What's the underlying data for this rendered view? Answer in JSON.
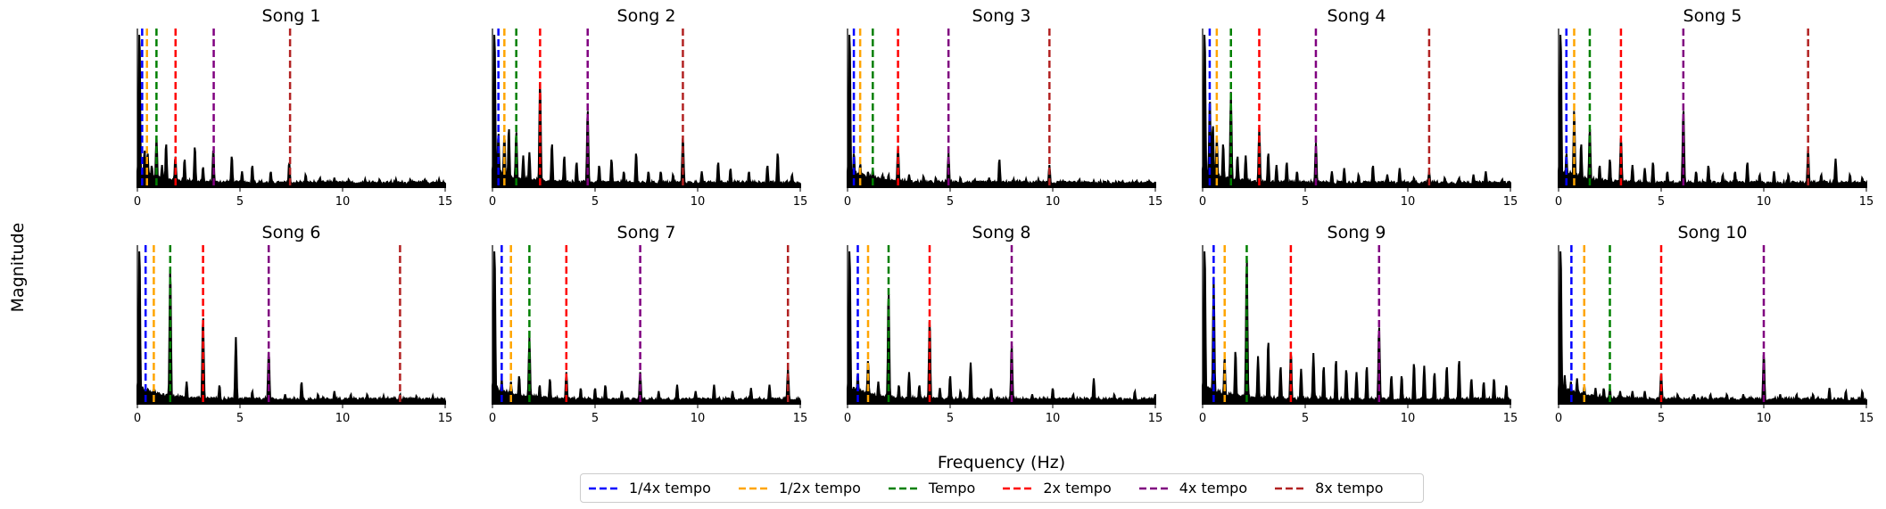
{
  "figure": {
    "ylabel": "Magnitude",
    "xlabel": "Frequency (Hz)"
  },
  "legend": {
    "items": [
      {
        "label": "1/4x tempo",
        "color": "#0000ff",
        "multiplier": 0.25
      },
      {
        "label": "1/2x tempo",
        "color": "#ffa500",
        "multiplier": 0.5
      },
      {
        "label": "Tempo",
        "color": "#008000",
        "multiplier": 1
      },
      {
        "label": "2x tempo",
        "color": "#ff0000",
        "multiplier": 2
      },
      {
        "label": "4x tempo",
        "color": "#800080",
        "multiplier": 4
      },
      {
        "label": "8x tempo",
        "color": "#b22222",
        "multiplier": 8
      }
    ]
  },
  "chart_data": [
    {
      "type": "line",
      "title": "Song 1",
      "tempo_hz": 0.93,
      "xlim": [
        0,
        15
      ],
      "xticks": [
        0,
        5,
        10,
        15
      ],
      "grid": false,
      "peaks": [
        [
          0.1,
          1.0
        ],
        [
          0.35,
          0.24
        ],
        [
          0.5,
          0.22
        ],
        [
          0.7,
          0.14
        ],
        [
          0.93,
          0.32
        ],
        [
          1.2,
          0.14
        ],
        [
          1.4,
          0.28
        ],
        [
          1.85,
          0.2
        ],
        [
          2.3,
          0.18
        ],
        [
          2.8,
          0.26
        ],
        [
          3.2,
          0.13
        ],
        [
          3.7,
          0.24
        ],
        [
          4.6,
          0.2
        ],
        [
          5.1,
          0.1
        ],
        [
          5.6,
          0.14
        ],
        [
          6.5,
          0.1
        ],
        [
          7.4,
          0.16
        ],
        [
          8.2,
          0.08
        ],
        [
          8.9,
          0.06
        ],
        [
          9.6,
          0.06
        ],
        [
          10.3,
          0.05
        ],
        [
          11.1,
          0.05
        ],
        [
          11.8,
          0.05
        ],
        [
          12.6,
          0.05
        ],
        [
          13.3,
          0.05
        ],
        [
          14.0,
          0.05
        ],
        [
          14.7,
          0.05
        ]
      ]
    },
    {
      "type": "line",
      "title": "Song 2",
      "tempo_hz": 1.16,
      "xlim": [
        0,
        15
      ],
      "xticks": [
        0,
        5,
        10,
        15
      ],
      "grid": false,
      "peaks": [
        [
          0.1,
          1.0
        ],
        [
          0.29,
          0.35
        ],
        [
          0.58,
          0.34
        ],
        [
          0.8,
          0.38
        ],
        [
          1.16,
          0.36
        ],
        [
          1.5,
          0.2
        ],
        [
          1.8,
          0.22
        ],
        [
          2.32,
          0.68
        ],
        [
          2.9,
          0.28
        ],
        [
          3.5,
          0.2
        ],
        [
          4.1,
          0.16
        ],
        [
          4.64,
          0.5
        ],
        [
          5.2,
          0.14
        ],
        [
          5.8,
          0.18
        ],
        [
          6.4,
          0.1
        ],
        [
          7.0,
          0.22
        ],
        [
          7.6,
          0.1
        ],
        [
          8.2,
          0.1
        ],
        [
          8.8,
          0.08
        ],
        [
          9.28,
          0.32
        ],
        [
          10.2,
          0.1
        ],
        [
          11.0,
          0.16
        ],
        [
          11.6,
          0.12
        ],
        [
          12.5,
          0.1
        ],
        [
          13.4,
          0.14
        ],
        [
          13.9,
          0.22
        ],
        [
          14.6,
          0.08
        ]
      ]
    },
    {
      "type": "line",
      "title": "Song 3",
      "tempo_hz": 1.23,
      "xlim": [
        0,
        15
      ],
      "xticks": [
        0,
        5,
        10,
        15
      ],
      "grid": false,
      "peaks": [
        [
          0.1,
          1.0
        ],
        [
          0.31,
          0.22
        ],
        [
          0.62,
          0.15
        ],
        [
          1.0,
          0.1
        ],
        [
          1.23,
          0.12
        ],
        [
          1.7,
          0.08
        ],
        [
          2.0,
          0.08
        ],
        [
          2.46,
          0.26
        ],
        [
          3.0,
          0.08
        ],
        [
          3.7,
          0.07
        ],
        [
          4.3,
          0.06
        ],
        [
          4.92,
          0.22
        ],
        [
          5.5,
          0.06
        ],
        [
          6.2,
          0.05
        ],
        [
          6.9,
          0.06
        ],
        [
          7.4,
          0.18
        ],
        [
          8.1,
          0.05
        ],
        [
          8.7,
          0.05
        ],
        [
          9.3,
          0.05
        ],
        [
          9.84,
          0.14
        ],
        [
          10.5,
          0.04
        ],
        [
          11.3,
          0.05
        ],
        [
          12.0,
          0.04
        ],
        [
          12.7,
          0.04
        ],
        [
          13.4,
          0.04
        ],
        [
          14.1,
          0.04
        ],
        [
          14.7,
          0.04
        ]
      ]
    },
    {
      "type": "line",
      "title": "Song 4",
      "tempo_hz": 1.38,
      "xlim": [
        0,
        15
      ],
      "xticks": [
        0,
        5,
        10,
        15
      ],
      "grid": false,
      "peaks": [
        [
          0.1,
          1.0
        ],
        [
          0.35,
          0.56
        ],
        [
          0.5,
          0.4
        ],
        [
          0.69,
          0.32
        ],
        [
          1.0,
          0.28
        ],
        [
          1.38,
          0.6
        ],
        [
          1.7,
          0.2
        ],
        [
          2.1,
          0.2
        ],
        [
          2.76,
          0.38
        ],
        [
          3.2,
          0.22
        ],
        [
          3.6,
          0.14
        ],
        [
          4.1,
          0.16
        ],
        [
          4.6,
          0.1
        ],
        [
          5.52,
          0.28
        ],
        [
          6.3,
          0.1
        ],
        [
          6.9,
          0.12
        ],
        [
          7.6,
          0.08
        ],
        [
          8.3,
          0.14
        ],
        [
          9.0,
          0.08
        ],
        [
          9.6,
          0.12
        ],
        [
          10.3,
          0.06
        ],
        [
          11.04,
          0.1
        ],
        [
          11.8,
          0.06
        ],
        [
          12.5,
          0.06
        ],
        [
          13.2,
          0.08
        ],
        [
          13.8,
          0.1
        ],
        [
          14.6,
          0.05
        ]
      ]
    },
    {
      "type": "line",
      "title": "Song 5",
      "tempo_hz": 1.52,
      "xlim": [
        0,
        15
      ],
      "xticks": [
        0,
        5,
        10,
        15
      ],
      "grid": false,
      "peaks": [
        [
          0.1,
          1.0
        ],
        [
          0.38,
          0.22
        ],
        [
          0.76,
          0.5
        ],
        [
          1.1,
          0.28
        ],
        [
          1.52,
          0.38
        ],
        [
          2.0,
          0.14
        ],
        [
          2.5,
          0.18
        ],
        [
          3.04,
          0.32
        ],
        [
          3.6,
          0.14
        ],
        [
          4.2,
          0.12
        ],
        [
          4.6,
          0.16
        ],
        [
          5.3,
          0.1
        ],
        [
          6.08,
          0.5
        ],
        [
          6.7,
          0.1
        ],
        [
          7.3,
          0.14
        ],
        [
          8.0,
          0.08
        ],
        [
          8.6,
          0.1
        ],
        [
          9.2,
          0.16
        ],
        [
          9.8,
          0.08
        ],
        [
          10.5,
          0.1
        ],
        [
          11.2,
          0.08
        ],
        [
          12.16,
          0.24
        ],
        [
          12.8,
          0.08
        ],
        [
          13.5,
          0.18
        ],
        [
          14.2,
          0.08
        ],
        [
          14.8,
          0.06
        ]
      ]
    },
    {
      "type": "line",
      "title": "Song 6",
      "tempo_hz": 1.6,
      "xlim": [
        0,
        15
      ],
      "xticks": [
        0,
        5,
        10,
        15
      ],
      "grid": false,
      "peaks": [
        [
          0.1,
          1.0
        ],
        [
          0.4,
          0.08
        ],
        [
          0.8,
          0.1
        ],
        [
          1.6,
          0.88
        ],
        [
          2.4,
          0.14
        ],
        [
          3.2,
          0.56
        ],
        [
          4.0,
          0.12
        ],
        [
          4.8,
          0.42
        ],
        [
          5.6,
          0.08
        ],
        [
          6.4,
          0.34
        ],
        [
          7.2,
          0.06
        ],
        [
          8.0,
          0.14
        ],
        [
          8.8,
          0.06
        ],
        [
          9.6,
          0.08
        ],
        [
          10.4,
          0.06
        ],
        [
          11.2,
          0.06
        ],
        [
          12.0,
          0.05
        ],
        [
          12.8,
          0.06
        ],
        [
          13.6,
          0.05
        ],
        [
          14.4,
          0.05
        ]
      ]
    },
    {
      "type": "line",
      "title": "Song 7",
      "tempo_hz": 1.8,
      "xlim": [
        0,
        15
      ],
      "xticks": [
        0,
        5,
        10,
        15
      ],
      "grid": false,
      "peaks": [
        [
          0.1,
          1.0
        ],
        [
          0.45,
          0.16
        ],
        [
          0.9,
          0.14
        ],
        [
          1.3,
          0.18
        ],
        [
          1.8,
          0.42
        ],
        [
          2.3,
          0.12
        ],
        [
          2.8,
          0.16
        ],
        [
          3.6,
          0.2
        ],
        [
          4.3,
          0.1
        ],
        [
          5.0,
          0.1
        ],
        [
          5.5,
          0.12
        ],
        [
          6.3,
          0.08
        ],
        [
          7.2,
          0.2
        ],
        [
          8.1,
          0.08
        ],
        [
          9.0,
          0.12
        ],
        [
          9.9,
          0.08
        ],
        [
          10.8,
          0.12
        ],
        [
          11.7,
          0.08
        ],
        [
          12.6,
          0.1
        ],
        [
          13.5,
          0.12
        ],
        [
          14.4,
          0.22
        ]
      ]
    },
    {
      "type": "line",
      "title": "Song 8",
      "tempo_hz": 2.0,
      "xlim": [
        0,
        15
      ],
      "xticks": [
        0,
        5,
        10,
        15
      ],
      "grid": false,
      "peaks": [
        [
          0.1,
          1.0
        ],
        [
          0.5,
          0.2
        ],
        [
          1.0,
          0.28
        ],
        [
          1.5,
          0.14
        ],
        [
          2.0,
          0.72
        ],
        [
          2.5,
          0.12
        ],
        [
          3.0,
          0.2
        ],
        [
          3.5,
          0.12
        ],
        [
          4.0,
          0.54
        ],
        [
          4.5,
          0.1
        ],
        [
          5.0,
          0.18
        ],
        [
          5.5,
          0.08
        ],
        [
          6.0,
          0.26
        ],
        [
          7.0,
          0.1
        ],
        [
          8.0,
          0.38
        ],
        [
          9.0,
          0.06
        ],
        [
          10.0,
          0.1
        ],
        [
          11.0,
          0.06
        ],
        [
          12.0,
          0.16
        ],
        [
          13.0,
          0.06
        ],
        [
          14.0,
          0.08
        ],
        [
          15.0,
          0.06
        ]
      ]
    },
    {
      "type": "line",
      "title": "Song 9",
      "tempo_hz": 2.15,
      "xlim": [
        0,
        15
      ],
      "xticks": [
        0,
        5,
        10,
        15
      ],
      "grid": false,
      "peaks": [
        [
          0.1,
          1.0
        ],
        [
          0.54,
          0.8
        ],
        [
          1.07,
          0.3
        ],
        [
          1.6,
          0.34
        ],
        [
          2.15,
          0.94
        ],
        [
          2.7,
          0.3
        ],
        [
          3.2,
          0.4
        ],
        [
          3.8,
          0.24
        ],
        [
          4.3,
          0.34
        ],
        [
          4.8,
          0.22
        ],
        [
          5.4,
          0.32
        ],
        [
          5.9,
          0.24
        ],
        [
          6.5,
          0.28
        ],
        [
          7.0,
          0.22
        ],
        [
          7.5,
          0.2
        ],
        [
          8.0,
          0.24
        ],
        [
          8.6,
          0.5
        ],
        [
          9.2,
          0.18
        ],
        [
          9.7,
          0.18
        ],
        [
          10.3,
          0.26
        ],
        [
          10.8,
          0.24
        ],
        [
          11.3,
          0.2
        ],
        [
          11.9,
          0.24
        ],
        [
          12.5,
          0.28
        ],
        [
          13.1,
          0.16
        ],
        [
          13.7,
          0.14
        ],
        [
          14.2,
          0.16
        ],
        [
          14.8,
          0.12
        ]
      ]
    },
    {
      "type": "line",
      "title": "Song 10",
      "tempo_hz": 2.5,
      "xlim": [
        0,
        15
      ],
      "xticks": [
        0,
        5,
        10,
        15
      ],
      "grid": false,
      "peaks": [
        [
          0.1,
          1.0
        ],
        [
          0.3,
          0.18
        ],
        [
          0.6,
          0.14
        ],
        [
          0.9,
          0.16
        ],
        [
          1.25,
          0.12
        ],
        [
          1.8,
          0.1
        ],
        [
          2.2,
          0.1
        ],
        [
          2.5,
          0.1
        ],
        [
          3.0,
          0.08
        ],
        [
          3.6,
          0.08
        ],
        [
          4.2,
          0.08
        ],
        [
          5.0,
          0.2
        ],
        [
          5.8,
          0.06
        ],
        [
          6.6,
          0.06
        ],
        [
          7.4,
          0.06
        ],
        [
          8.2,
          0.06
        ],
        [
          9.0,
          0.06
        ],
        [
          10.0,
          0.32
        ],
        [
          10.8,
          0.06
        ],
        [
          11.6,
          0.06
        ],
        [
          12.4,
          0.06
        ],
        [
          13.2,
          0.1
        ],
        [
          14.0,
          0.08
        ],
        [
          14.8,
          0.08
        ]
      ]
    }
  ]
}
